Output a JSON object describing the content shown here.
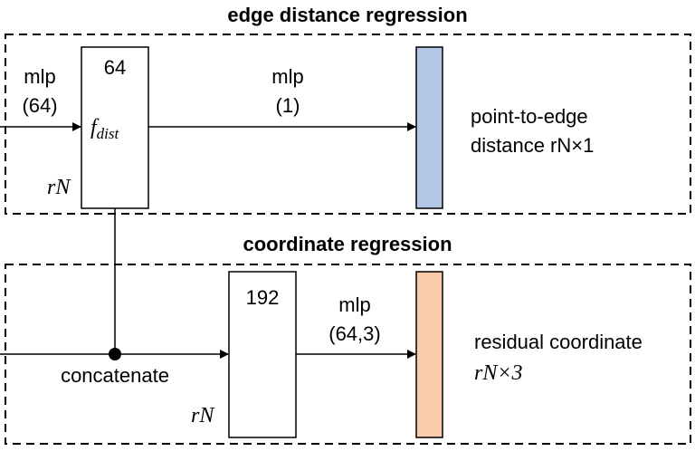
{
  "top_section": {
    "title": "edge distance regression",
    "input_mlp": "mlp",
    "input_mlp_dims": "(64)",
    "block_channels": "64",
    "block_feature_prefix": "f",
    "block_feature_sub": "dist",
    "block_rows": "rN",
    "output_mlp": "mlp",
    "output_mlp_dims": "(1)",
    "output_label_line1": "point-to-edge",
    "output_label_line2": "distance rN×1",
    "output_color": "#b4c7e7"
  },
  "bottom_section": {
    "title": "coordinate regression",
    "join_label": "concatenate",
    "block_channels": "192",
    "block_rows": "rN",
    "output_mlp": "mlp",
    "output_mlp_dims": "(64,3)",
    "output_label_line1": "residual coordinate",
    "output_label_line2": "rN×3",
    "output_color": "#f8cbad"
  }
}
